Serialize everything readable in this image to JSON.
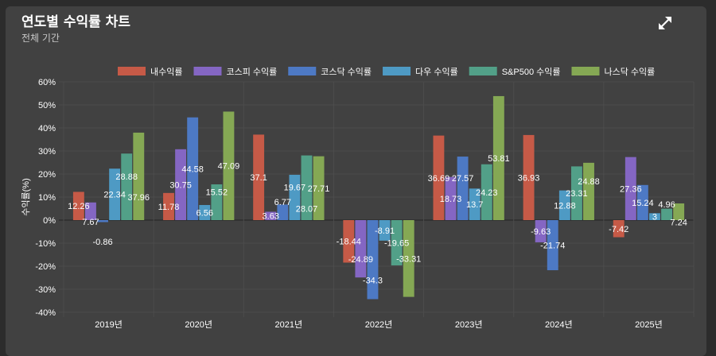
{
  "header": {
    "title": "연도별 수익률 차트",
    "subtitle": "전체 기간",
    "expand_icon": "expand-arrows-icon"
  },
  "chart_data": {
    "type": "bar",
    "title": "",
    "xlabel": "",
    "ylabel": "수익률(%)",
    "ylim": [
      -40,
      60
    ],
    "yticks": [
      -40,
      -30,
      -20,
      -10,
      0,
      10,
      20,
      30,
      40,
      50,
      60
    ],
    "ytick_format": "{v}%",
    "grid": true,
    "legend_position": "top",
    "categories": [
      "2019년",
      "2020년",
      "2021년",
      "2022년",
      "2023년",
      "2024년",
      "2025년"
    ],
    "series": [
      {
        "name": "내수익률",
        "color": "#c65a47",
        "values": [
          12.26,
          11.78,
          37.1,
          -18.44,
          36.69,
          36.93,
          -7.42
        ]
      },
      {
        "name": "코스피 수익률",
        "color": "#8466c3",
        "values": [
          7.67,
          30.75,
          3.63,
          -24.89,
          18.73,
          -9.63,
          27.36
        ]
      },
      {
        "name": "코스닥 수익률",
        "color": "#4d79c4",
        "values": [
          -0.86,
          44.58,
          6.77,
          -34.3,
          27.57,
          -21.74,
          15.24
        ]
      },
      {
        "name": "다우 수익률",
        "color": "#4e9ac4",
        "values": [
          22.34,
          6.56,
          19.67,
          -8.91,
          13.7,
          12.88,
          3
        ]
      },
      {
        "name": "S&P500 수익률",
        "color": "#52a088",
        "values": [
          28.88,
          15.52,
          28.07,
          -19.65,
          24.23,
          23.31,
          4.96
        ]
      },
      {
        "name": "나스닥 수익률",
        "color": "#85a854",
        "values": [
          37.96,
          47.09,
          27.71,
          -33.31,
          53.81,
          24.88,
          7.24
        ]
      }
    ]
  }
}
